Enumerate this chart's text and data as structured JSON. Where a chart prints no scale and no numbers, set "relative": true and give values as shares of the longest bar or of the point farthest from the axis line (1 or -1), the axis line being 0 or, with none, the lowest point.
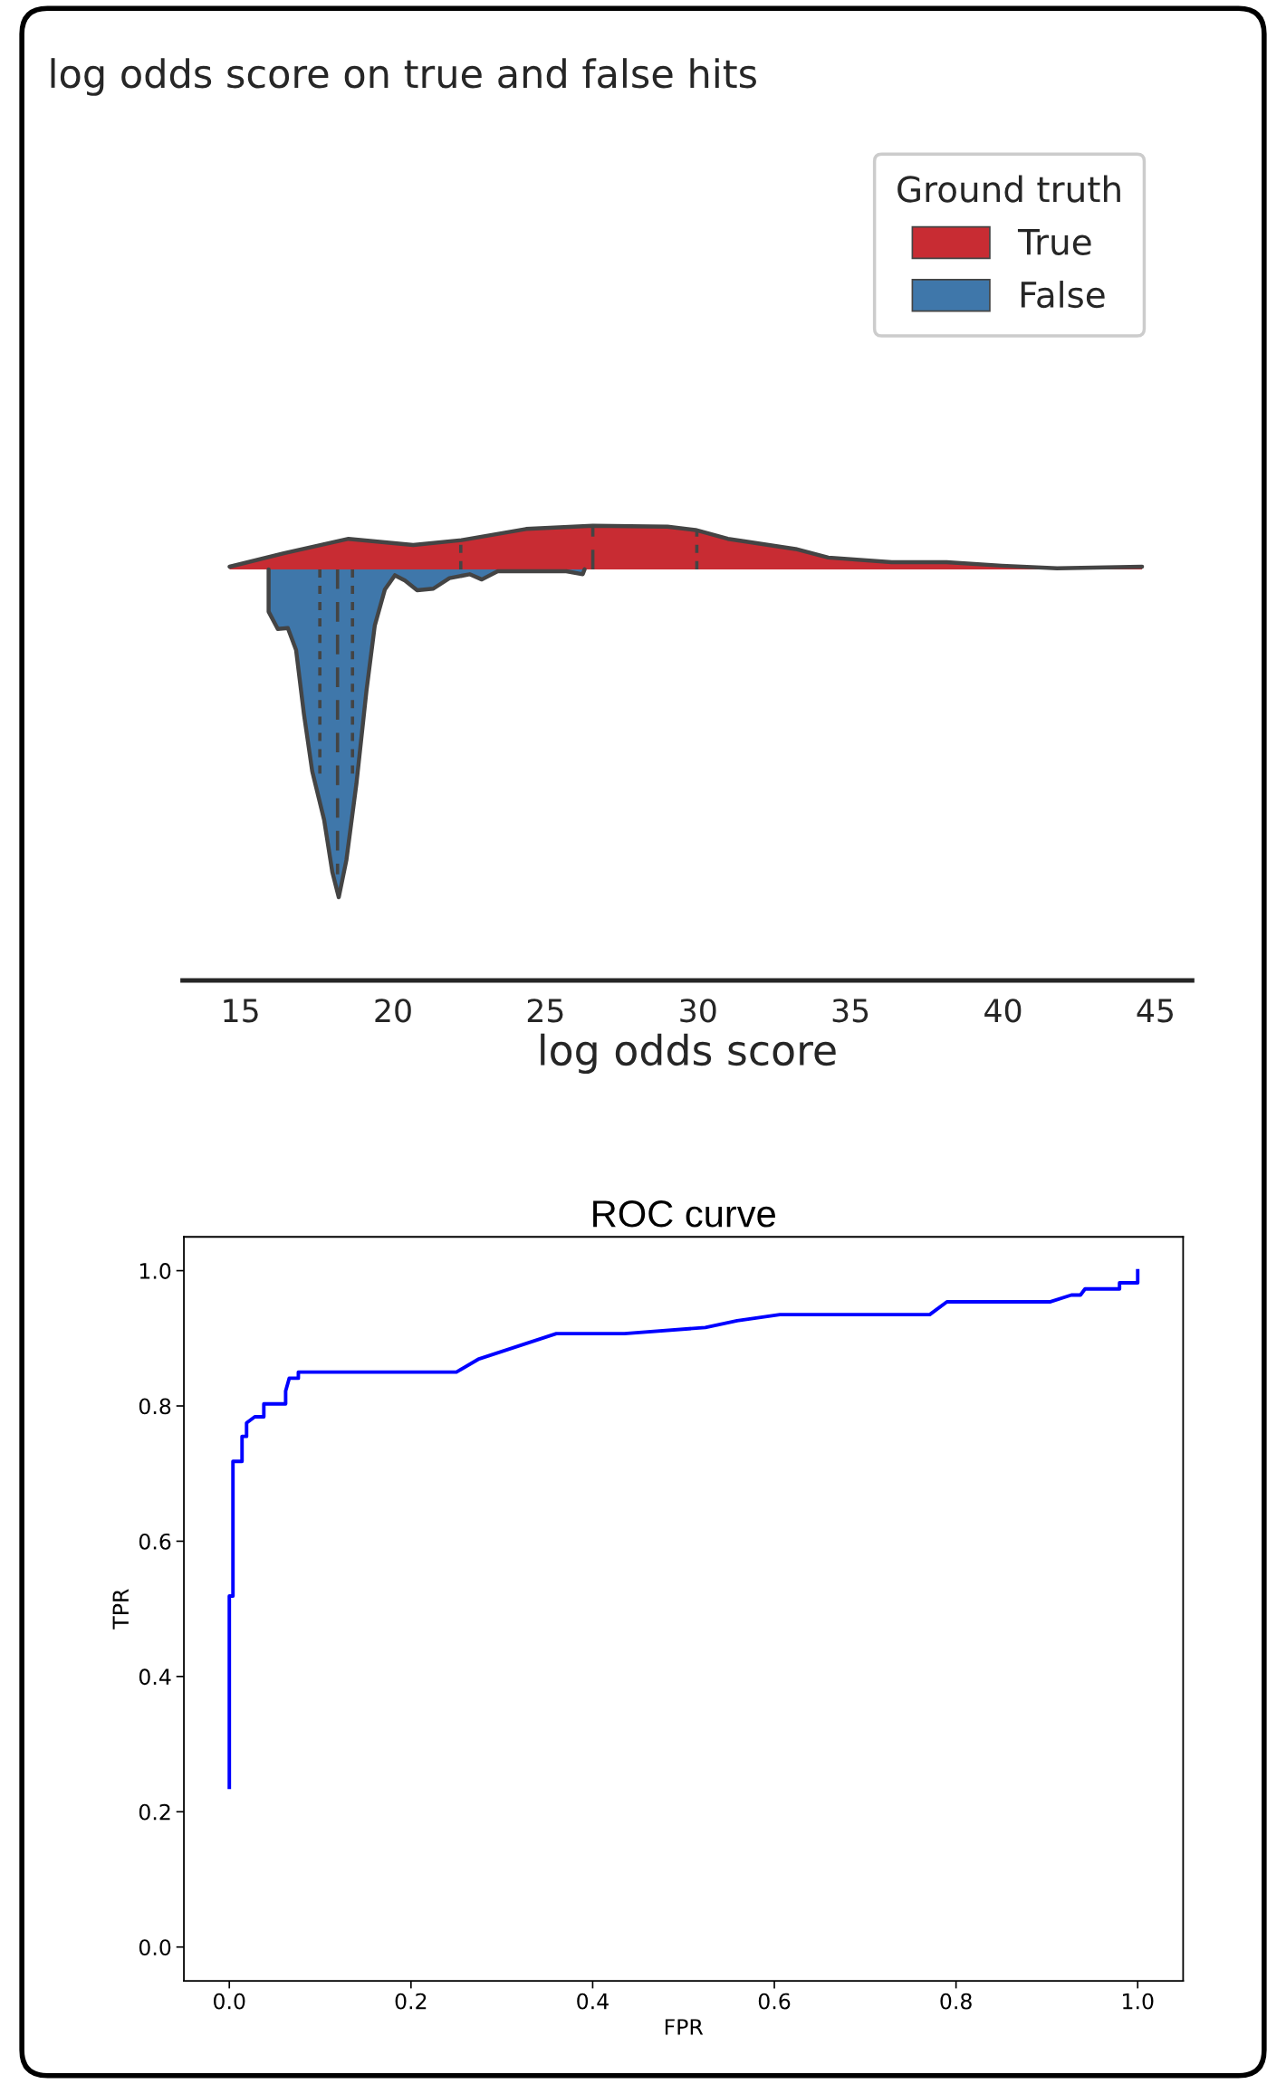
{
  "chart_data": [
    {
      "type": "area",
      "relative": true,
      "title": "log odds score on true and false hits",
      "xlabel": "log odds score",
      "legend_title": "Ground truth",
      "legend": "top right",
      "tick_labels": "x",
      "xlim": [
        13.1,
        46.2
      ],
      "xticks": [
        15,
        20,
        25,
        30,
        35,
        40,
        45
      ],
      "series": [
        {
          "name": "True",
          "color": "#c82c33",
          "x": [
            14.64,
            16.42,
            18.54,
            20.66,
            22.25,
            24.36,
            26.55,
            29.0,
            29.92,
            30.98,
            31.48,
            33.2,
            34.27,
            36.35,
            38.15,
            39.96,
            41.77,
            44.56
          ],
          "values": [
            0.008,
            0.049,
            0.093,
            0.074,
            0.089,
            0.123,
            0.133,
            0.13,
            0.12,
            0.093,
            0.086,
            0.062,
            0.036,
            0.022,
            0.022,
            0.011,
            0.003,
            0.008
          ]
        },
        {
          "name": "False",
          "color": "#3f77aa",
          "x": [
            15.92,
            15.92,
            16.22,
            16.55,
            16.82,
            17.08,
            17.35,
            17.74,
            18.01,
            18.22,
            18.47,
            18.8,
            19.13,
            19.4,
            19.73,
            20.06,
            20.39,
            20.79,
            21.32,
            21.85,
            22.51,
            22.91,
            23.43,
            25.68,
            26.22,
            26.28
          ],
          "values": [
            0,
            -0.129,
            -0.182,
            -0.179,
            -0.246,
            -0.443,
            -0.616,
            -0.764,
            -0.924,
            -1,
            -0.887,
            -0.653,
            -0.369,
            -0.172,
            -0.062,
            -0.018,
            -0.034,
            -0.064,
            -0.059,
            -0.027,
            -0.015,
            -0.031,
            -0.006,
            -0.006,
            -0.015,
            0
          ]
        },
        {
          "type": "line",
          "color": "#444444",
          "line_style": "dotted",
          "x": [
            22.22,
            22.22
          ],
          "values": [
            0,
            0.088
          ]
        },
        {
          "type": "line",
          "color": "#444444",
          "line_style": "dashed",
          "x": [
            26.55,
            26.55
          ],
          "values": [
            0,
            0.133
          ]
        },
        {
          "type": "line",
          "color": "#444444",
          "line_style": "dotted",
          "x": [
            29.96,
            29.96
          ],
          "values": [
            0,
            0.12
          ]
        },
        {
          "type": "line",
          "color": "#444444",
          "line_style": "dotted",
          "x": [
            17.6,
            17.6
          ],
          "values": [
            0,
            -0.64
          ]
        },
        {
          "type": "line",
          "color": "#444444",
          "line_style": "dashed",
          "x": [
            18.18,
            18.18
          ],
          "values": [
            0,
            -0.93
          ]
        },
        {
          "type": "line",
          "color": "#444444",
          "line_style": "dotted",
          "x": [
            18.67,
            18.67
          ],
          "values": [
            0,
            -0.64
          ]
        }
      ]
    },
    {
      "type": "line",
      "title": "ROC curve",
      "xlabel": "FPR",
      "ylabel": "TPR",
      "xlim": [
        -0.05,
        1.05
      ],
      "ylim": [
        -0.05,
        1.05
      ],
      "xticks": [
        {
          "value": 0,
          "label": "0.0"
        },
        {
          "value": 0.2,
          "label": "0.2"
        },
        {
          "value": 0.4,
          "label": "0.4"
        },
        {
          "value": 0.6,
          "label": "0.6"
        },
        {
          "value": 0.8,
          "label": "0.8"
        },
        {
          "value": 1,
          "label": "1.0"
        }
      ],
      "yticks": [
        {
          "value": 0,
          "label": "0.0"
        },
        {
          "value": 0.2,
          "label": "0.2"
        },
        {
          "value": 0.4,
          "label": "0.4"
        },
        {
          "value": 0.6,
          "label": "0.6"
        },
        {
          "value": 0.8,
          "label": "0.8"
        },
        {
          "value": 1,
          "label": "1.0"
        }
      ],
      "series": [
        {
          "color": "#0000ff",
          "x": [
            0,
            0,
            0.004,
            0.004,
            0.014,
            0.014,
            0.019,
            0.019,
            0.028,
            0.038,
            0.038,
            0.062,
            0.062,
            0.066,
            0.076,
            0.076,
            0.25,
            0.274,
            0.36,
            0.435,
            0.524,
            0.559,
            0.606,
            0.771,
            0.79,
            0.904,
            0.927,
            0.937,
            0.942,
            0.98,
            0.98,
            1.0,
            1.0
          ],
          "values": [
            0.236,
            0.519,
            0.519,
            0.718,
            0.718,
            0.755,
            0.755,
            0.775,
            0.784,
            0.784,
            0.803,
            0.803,
            0.822,
            0.841,
            0.841,
            0.85,
            0.85,
            0.869,
            0.907,
            0.907,
            0.916,
            0.926,
            0.935,
            0.935,
            0.954,
            0.954,
            0.964,
            0.964,
            0.973,
            0.973,
            0.982,
            0.982,
            1.0
          ]
        }
      ]
    }
  ]
}
